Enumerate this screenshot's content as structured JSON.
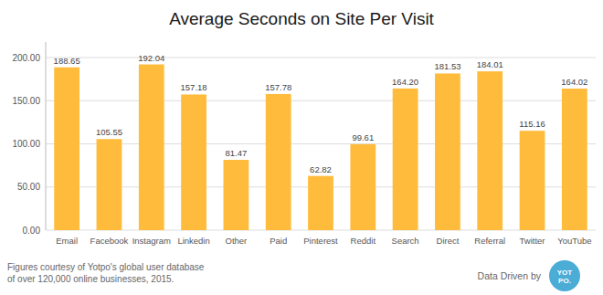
{
  "chart_data": {
    "type": "bar",
    "title": "Average Seconds on Site Per Visit",
    "categories": [
      "Email",
      "Facebook",
      "Instagram",
      "Linkedin",
      "Other",
      "Paid",
      "Pinterest",
      "Reddit",
      "Search",
      "Direct",
      "Referral",
      "Twitter",
      "YouTube"
    ],
    "values": [
      188.65,
      105.55,
      192.04,
      157.18,
      81.47,
      157.78,
      62.82,
      99.61,
      164.2,
      181.53,
      184.01,
      115.16,
      164.02
    ],
    "value_labels": [
      "188.65",
      "105.55",
      "192.04",
      "157.18",
      "81.47",
      "157.78",
      "62.82",
      "99.61",
      "164.20",
      "181.53",
      "184.01",
      "115.16",
      "164.02"
    ],
    "data_labels": true,
    "color": "#FFBC3C",
    "ylim": [
      0,
      218
    ],
    "yticks": [
      {
        "value": 0,
        "label": "0.00"
      },
      {
        "value": 50,
        "label": "50.00"
      },
      {
        "value": 100,
        "label": "100.00"
      },
      {
        "value": 150,
        "label": "150.00"
      },
      {
        "value": 200,
        "label": "200.00"
      }
    ],
    "grid": true,
    "annotations": [
      {
        "text": "Figures courtesy of Yotpo's global user database"
      },
      {
        "text": "of over 120,000 online businesses, 2015."
      },
      {
        "text": "Data Driven by"
      },
      {
        "text": "YOT",
        "color": "#4BACD6"
      },
      {
        "text": "PO.",
        "color": "#4BACD6"
      }
    ]
  }
}
